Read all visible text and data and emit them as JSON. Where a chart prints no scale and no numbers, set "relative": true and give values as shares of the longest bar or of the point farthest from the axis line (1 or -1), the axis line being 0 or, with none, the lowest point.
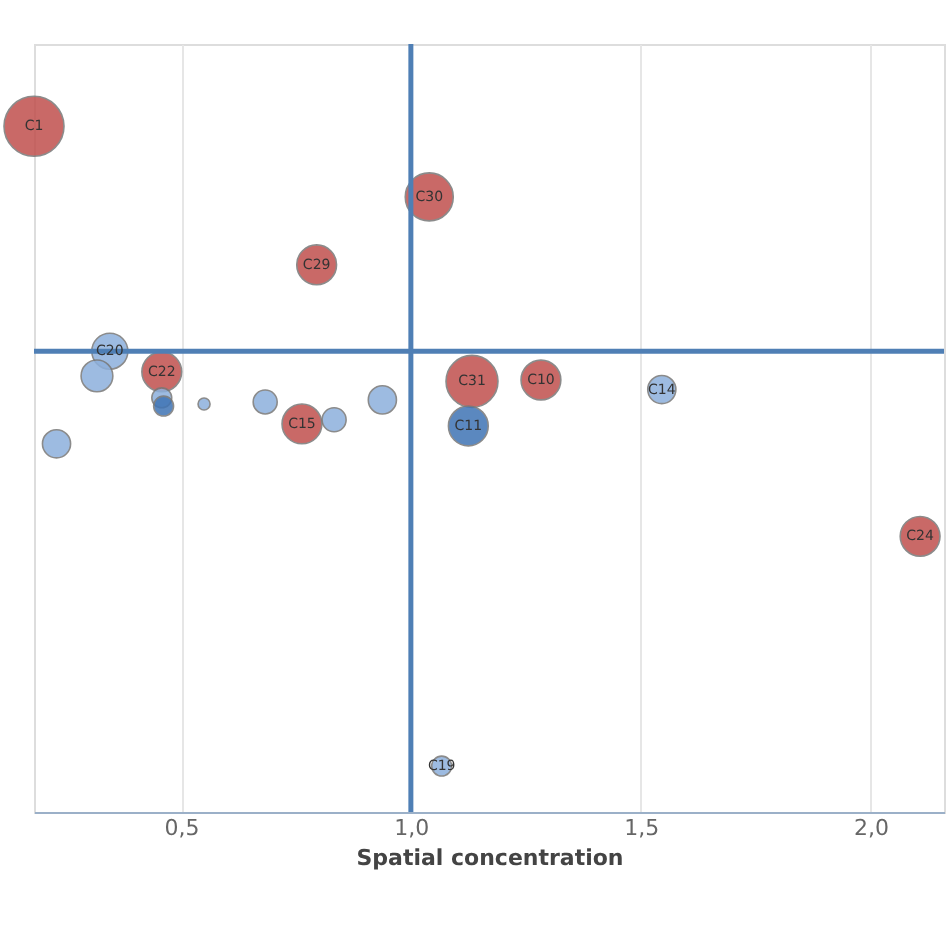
{
  "chart_data": {
    "type": "bubble",
    "relative": true,
    "xlabel": "Spatial concentration",
    "xlim": [
      0.18,
      2.16
    ],
    "xticks": [
      {
        "value": 0.5,
        "label": "0,5"
      },
      {
        "value": 1.0,
        "label": "1,0"
      },
      {
        "value": 1.5,
        "label": "1,5"
      },
      {
        "value": 2.0,
        "label": "2,0"
      }
    ],
    "grid": "x",
    "series": [
      {
        "color": "#c0504d",
        "x": [
          0.18,
          1.04,
          0.795,
          0.458,
          0.763,
          1.133,
          1.283,
          2.108
        ],
        "values": [
          1.0,
          0.897,
          0.798,
          0.642,
          0.566,
          0.628,
          0.63,
          0.402
        ],
        "sizes": [
          1.0,
          0.64,
          0.44,
          0.44,
          0.44,
          0.75,
          0.44,
          0.44
        ]
      },
      {
        "color": "#8db0dc",
        "x": [
          0.345,
          0.317,
          0.458,
          0.55,
          0.683,
          0.833,
          0.938,
          1.546,
          1.067,
          0.229
        ],
        "values": [
          0.672,
          0.636,
          0.604,
          0.595,
          0.598,
          0.572,
          0.601,
          0.616,
          0.067,
          0.537
        ],
        "sizes": [
          0.36,
          0.28,
          0.11,
          0.04,
          0.16,
          0.16,
          0.22,
          0.22,
          0.11,
          0.22
        ]
      },
      {
        "color": "#3f74b5",
        "x": [
          0.462,
          1.125
        ],
        "values": [
          0.592,
          0.563
        ],
        "sizes": [
          0.11,
          0.44
        ]
      }
    ],
    "ref_lines": [
      {
        "axis": "x",
        "value": 1.0,
        "color": "#4f7fb5"
      },
      {
        "axis": "y",
        "value": 0.672,
        "color": "#4f7fb5"
      }
    ],
    "annotations": [
      {
        "text": "C1",
        "x": 0.18,
        "y": 1.0
      },
      {
        "text": "C30",
        "x": 1.04,
        "y": 0.897
      },
      {
        "text": "C29",
        "x": 0.795,
        "y": 0.798
      },
      {
        "text": "C20",
        "x": 0.345,
        "y": 0.672
      },
      {
        "text": "C22",
        "x": 0.458,
        "y": 0.642
      },
      {
        "text": "C15",
        "x": 0.763,
        "y": 0.566
      },
      {
        "text": "C31",
        "x": 1.133,
        "y": 0.628
      },
      {
        "text": "C11",
        "x": 1.125,
        "y": 0.563
      },
      {
        "text": "C10",
        "x": 1.283,
        "y": 0.63
      },
      {
        "text": "C14",
        "x": 1.546,
        "y": 0.616
      },
      {
        "text": "C24",
        "x": 2.108,
        "y": 0.402
      },
      {
        "text": "C19",
        "x": 1.067,
        "y": 0.067
      }
    ]
  }
}
